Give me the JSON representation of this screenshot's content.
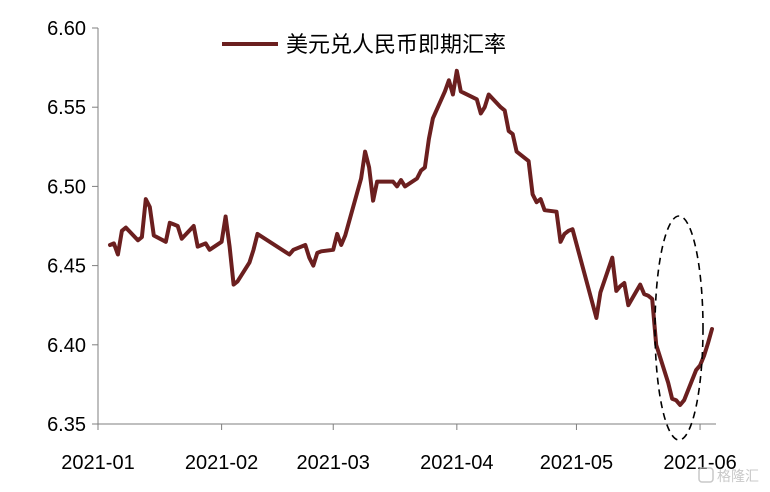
{
  "chart_data": {
    "type": "line",
    "title": "",
    "xlabel": "",
    "ylabel": "",
    "ylim": [
      6.35,
      6.6
    ],
    "yticks": [
      "6.35",
      "6.40",
      "6.45",
      "6.50",
      "6.55",
      "6.60"
    ],
    "xticks": [
      "2021-01",
      "2021-02",
      "2021-03",
      "2021-04",
      "2021-05",
      "2021-06"
    ],
    "grid": false,
    "legend_position": "top",
    "series": [
      {
        "name": "美元兑人民币即期汇率",
        "color": "#6b1f1f",
        "x": [
          "2021-01-04",
          "2021-01-05",
          "2021-01-06",
          "2021-01-07",
          "2021-01-08",
          "2021-01-11",
          "2021-01-12",
          "2021-01-13",
          "2021-01-14",
          "2021-01-15",
          "2021-01-18",
          "2021-01-19",
          "2021-01-20",
          "2021-01-21",
          "2021-01-22",
          "2021-01-25",
          "2021-01-26",
          "2021-01-27",
          "2021-01-28",
          "2021-01-29",
          "2021-02-01",
          "2021-02-02",
          "2021-02-03",
          "2021-02-04",
          "2021-02-05",
          "2021-02-08",
          "2021-02-09",
          "2021-02-10",
          "2021-02-18",
          "2021-02-19",
          "2021-02-22",
          "2021-02-23",
          "2021-02-24",
          "2021-02-25",
          "2021-02-26",
          "2021-03-01",
          "2021-03-02",
          "2021-03-03",
          "2021-03-04",
          "2021-03-05",
          "2021-03-08",
          "2021-03-09",
          "2021-03-10",
          "2021-03-11",
          "2021-03-12",
          "2021-03-15",
          "2021-03-16",
          "2021-03-17",
          "2021-03-18",
          "2021-03-19",
          "2021-03-22",
          "2021-03-23",
          "2021-03-24",
          "2021-03-25",
          "2021-03-26",
          "2021-03-29",
          "2021-03-30",
          "2021-03-31",
          "2021-04-01",
          "2021-04-02",
          "2021-04-06",
          "2021-04-07",
          "2021-04-08",
          "2021-04-09",
          "2021-04-12",
          "2021-04-13",
          "2021-04-14",
          "2021-04-15",
          "2021-04-16",
          "2021-04-19",
          "2021-04-20",
          "2021-04-21",
          "2021-04-22",
          "2021-04-23",
          "2021-04-26",
          "2021-04-27",
          "2021-04-28",
          "2021-04-29",
          "2021-04-30",
          "2021-05-06",
          "2021-05-07",
          "2021-05-10",
          "2021-05-11",
          "2021-05-12",
          "2021-05-13",
          "2021-05-14",
          "2021-05-17",
          "2021-05-18",
          "2021-05-19",
          "2021-05-20",
          "2021-05-21",
          "2021-05-24",
          "2021-05-25",
          "2021-05-26",
          "2021-05-27",
          "2021-05-28",
          "2021-05-31",
          "2021-06-01",
          "2021-06-02",
          "2021-06-03",
          "2021-06-04"
        ],
        "values": [
          6.463,
          6.464,
          6.457,
          6.472,
          6.474,
          6.466,
          6.468,
          6.492,
          6.487,
          6.469,
          6.465,
          6.477,
          6.476,
          6.475,
          6.467,
          6.475,
          6.462,
          6.463,
          6.464,
          6.46,
          6.465,
          6.481,
          6.462,
          6.438,
          6.44,
          6.452,
          6.46,
          6.47,
          6.457,
          6.46,
          6.463,
          6.455,
          6.45,
          6.458,
          6.459,
          6.46,
          6.47,
          6.463,
          6.469,
          6.478,
          6.505,
          6.522,
          6.512,
          6.491,
          6.503,
          6.503,
          6.503,
          6.5,
          6.504,
          6.5,
          6.505,
          6.51,
          6.512,
          6.53,
          6.543,
          6.56,
          6.567,
          6.558,
          6.573,
          6.56,
          6.555,
          6.546,
          6.55,
          6.558,
          6.55,
          6.548,
          6.535,
          6.533,
          6.522,
          6.516,
          6.495,
          6.49,
          6.492,
          6.485,
          6.484,
          6.465,
          6.47,
          6.472,
          6.473,
          6.417,
          6.433,
          6.455,
          6.434,
          6.437,
          6.439,
          6.425,
          6.438,
          6.432,
          6.431,
          6.429,
          6.4,
          6.376,
          6.366,
          6.365,
          6.362,
          6.365,
          6.384,
          6.387,
          6.393,
          6.401,
          6.41
        ]
      }
    ],
    "annotation": {
      "type": "dashed-ellipse",
      "x_center": "2021-05-27",
      "y_center": 6.399
    }
  },
  "watermark": {
    "text": "格隆汇"
  }
}
